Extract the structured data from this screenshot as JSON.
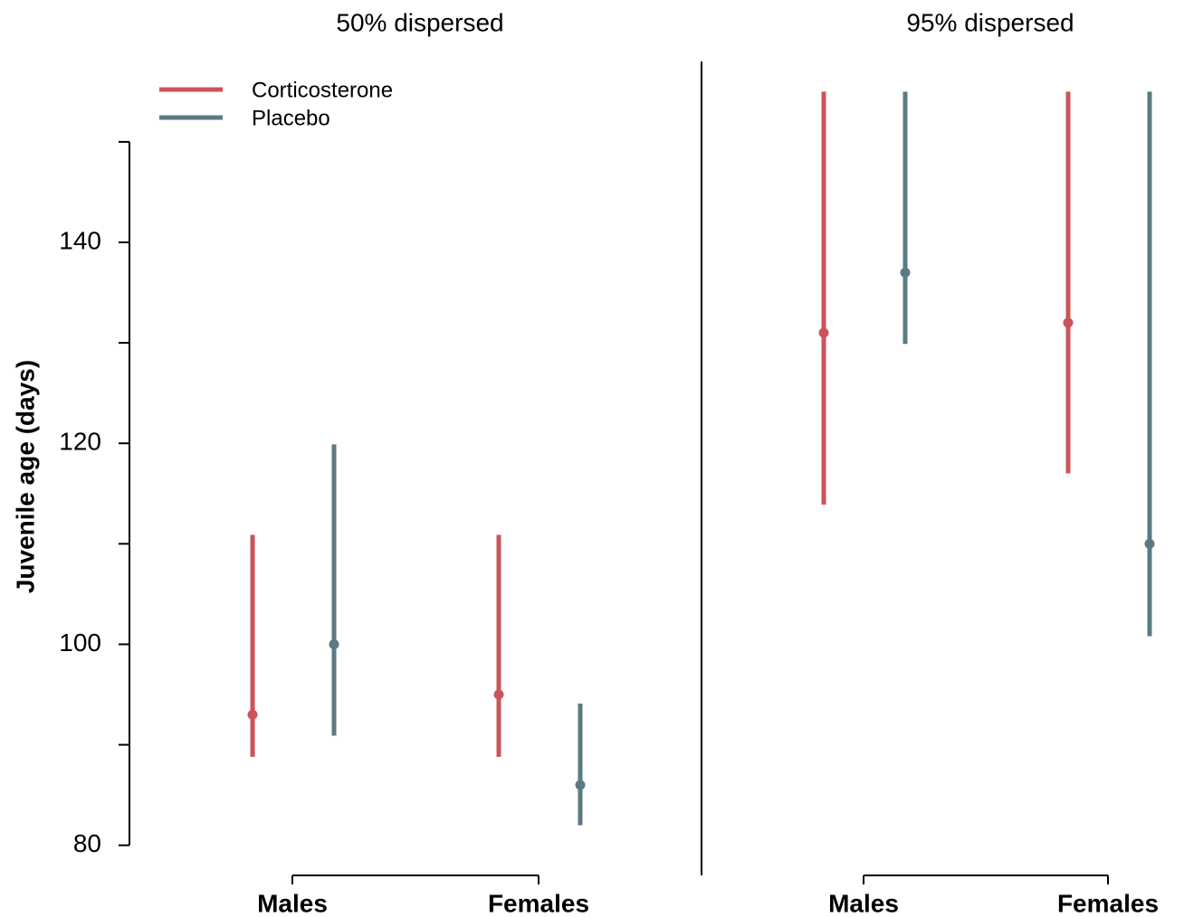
{
  "chart_data": {
    "type": "pointrange",
    "ylabel": "Juvenile age (days)",
    "ylim": [
      77,
      158
    ],
    "yticks": [
      80,
      100,
      120,
      140
    ],
    "minor_yticks": [
      90,
      110,
      130,
      150
    ],
    "legend": "top-left",
    "series": [
      {
        "name": "Corticosterone",
        "color": "#cc5459"
      },
      {
        "name": "Placebo",
        "color": "#5a7b84"
      }
    ],
    "panels": [
      {
        "title": "50% dispersed",
        "categories": [
          "Males",
          "Females"
        ],
        "series": [
          {
            "values": [
              93,
              95
            ],
            "lower": [
              88.8,
              88.8
            ],
            "upper": [
              110.9,
              110.9
            ]
          },
          {
            "values": [
              100,
              86
            ],
            "lower": [
              90.9,
              82
            ],
            "upper": [
              119.9,
              94.1
            ]
          }
        ]
      },
      {
        "title": "95% dispersed",
        "categories": [
          "Males",
          "Females"
        ],
        "series": [
          {
            "values": [
              131,
              132
            ],
            "lower": [
              113.9,
              117
            ],
            "upper": [
              155,
              155
            ]
          },
          {
            "values": [
              137,
              110
            ],
            "lower": [
              129.9,
              100.8
            ],
            "upper": [
              155,
              155
            ]
          }
        ]
      }
    ]
  }
}
